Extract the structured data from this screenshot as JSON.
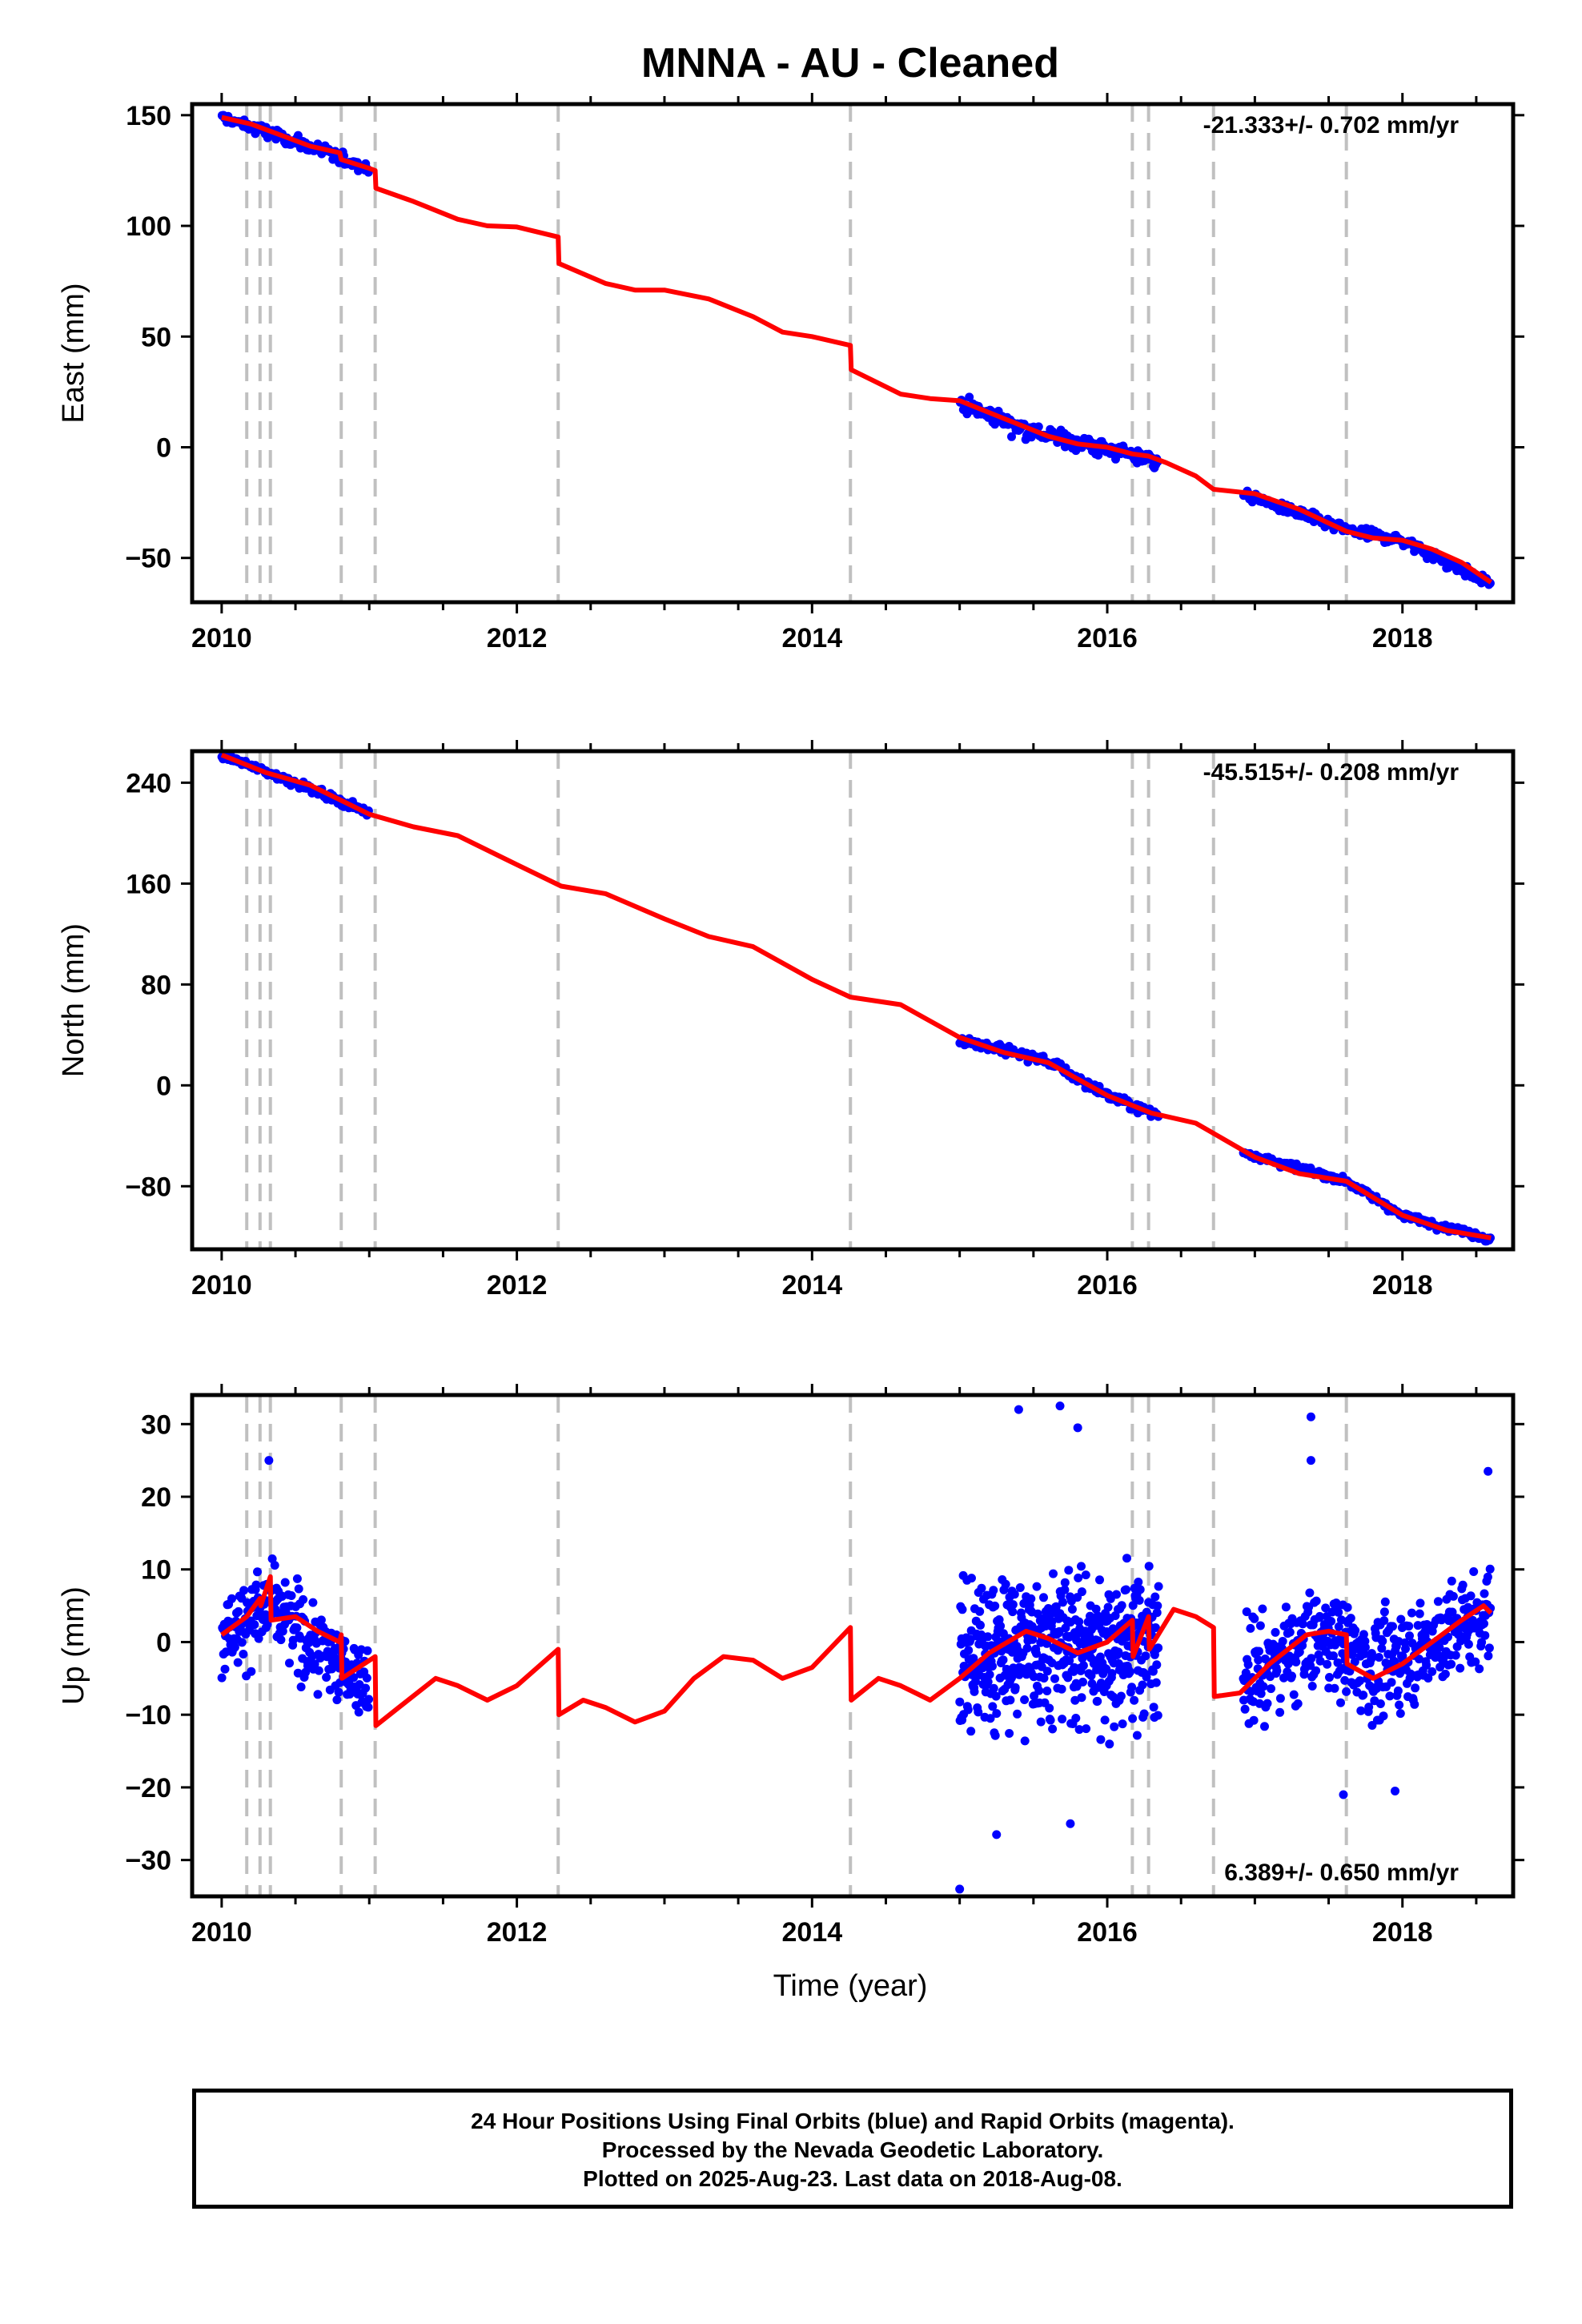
{
  "title": "MNNA  - AU - Cleaned",
  "xlabel": "Time (year)",
  "footer": {
    "line1": "24 Hour Positions Using Final Orbits (blue) and Rapid Orbits (magenta).",
    "line2": "Processed by the Nevada Geodetic Laboratory.",
    "line3": "Plotted on 2025-Aug-23. Last data on 2018-Aug-08."
  },
  "colors": {
    "data": "#0000ff",
    "model": "#ff0000",
    "breaks": "#c0c0c0",
    "frame": "#000000"
  },
  "chart_data": [
    {
      "type": "scatter",
      "component": "East",
      "ylabel": "East (mm)",
      "rate_label": "-21.333+/- 0.702 mm/yr",
      "xlim": [
        2009.8,
        2018.75
      ],
      "ylim": [
        -70,
        155
      ],
      "xticks": [
        2010,
        2012,
        2014,
        2016,
        2018
      ],
      "yticks": [
        150,
        100,
        50,
        0,
        -50
      ],
      "ytick_labels": [
        "150",
        "100",
        "50",
        "0",
        "−50"
      ],
      "grid": false,
      "breaks": [
        2010.17,
        2010.26,
        2010.33,
        2010.81,
        2011.04,
        2012.28,
        2014.26,
        2016.17,
        2016.28,
        2016.72,
        2017.62
      ],
      "model": [
        [
          2010.0,
          149
        ],
        [
          2010.2,
          146
        ],
        [
          2010.4,
          141
        ],
        [
          2010.6,
          136
        ],
        [
          2010.8,
          133
        ],
        [
          2010.81,
          130
        ],
        [
          2011.0,
          126
        ],
        [
          2011.04,
          125
        ],
        [
          2011.045,
          117
        ],
        [
          2011.3,
          111
        ],
        [
          2011.6,
          103
        ],
        [
          2011.8,
          100
        ],
        [
          2012.0,
          99.5
        ],
        [
          2012.28,
          95
        ],
        [
          2012.285,
          83
        ],
        [
          2012.6,
          74
        ],
        [
          2012.8,
          71
        ],
        [
          2013.0,
          71
        ],
        [
          2013.3,
          67
        ],
        [
          2013.6,
          59
        ],
        [
          2013.8,
          52
        ],
        [
          2014.0,
          50
        ],
        [
          2014.26,
          46
        ],
        [
          2014.265,
          35
        ],
        [
          2014.6,
          24
        ],
        [
          2014.8,
          22
        ],
        [
          2015.0,
          21
        ],
        [
          2015.3,
          13
        ],
        [
          2015.6,
          5
        ],
        [
          2015.8,
          1.5
        ],
        [
          2016.0,
          0
        ],
        [
          2016.17,
          -3
        ],
        [
          2016.28,
          -4
        ],
        [
          2016.4,
          -7
        ],
        [
          2016.6,
          -13
        ],
        [
          2016.72,
          -19
        ],
        [
          2017.0,
          -21
        ],
        [
          2017.3,
          -28
        ],
        [
          2017.62,
          -38
        ],
        [
          2017.8,
          -41
        ],
        [
          2018.0,
          -42
        ],
        [
          2018.2,
          -46
        ],
        [
          2018.4,
          -52
        ],
        [
          2018.6,
          -61
        ]
      ],
      "data_segments": [
        {
          "x_range": [
            2010.0,
            2011.0
          ],
          "trend": [
            [
              2010.0,
              149
            ],
            [
              2010.5,
              138
            ],
            [
              2011.0,
              126
            ]
          ],
          "noise": 2.5,
          "n": 120
        },
        {
          "x_range": [
            2015.0,
            2016.35
          ],
          "trend": [
            [
              2015.0,
              20
            ],
            [
              2015.5,
              7
            ],
            [
              2016.0,
              -1
            ],
            [
              2016.35,
              -6
            ]
          ],
          "noise": 3.5,
          "n": 170
        },
        {
          "x_range": [
            2016.92,
            2018.6
          ],
          "trend": [
            [
              2016.92,
              -21
            ],
            [
              2017.6,
              -37
            ],
            [
              2018.0,
              -42
            ],
            [
              2018.6,
              -62
            ]
          ],
          "noise": 2.2,
          "n": 200
        }
      ]
    },
    {
      "type": "scatter",
      "component": "North",
      "ylabel": "North (mm)",
      "rate_label": "-45.515+/- 0.208 mm/yr",
      "xlim": [
        2009.8,
        2018.75
      ],
      "ylim": [
        -130,
        265
      ],
      "xticks": [
        2010,
        2012,
        2014,
        2016,
        2018
      ],
      "yticks": [
        240,
        160,
        80,
        0,
        -80
      ],
      "ytick_labels": [
        "240",
        "160",
        "80",
        "0",
        "−80"
      ],
      "grid": false,
      "breaks": [
        2010.17,
        2010.26,
        2010.33,
        2010.81,
        2011.04,
        2012.28,
        2014.26,
        2016.17,
        2016.28,
        2016.72,
        2017.62
      ],
      "model": [
        [
          2010.0,
          262
        ],
        [
          2010.3,
          248
        ],
        [
          2010.6,
          238
        ],
        [
          2011.0,
          215
        ],
        [
          2011.3,
          205
        ],
        [
          2011.6,
          198
        ],
        [
          2012.0,
          175
        ],
        [
          2012.3,
          158
        ],
        [
          2012.6,
          152
        ],
        [
          2013.0,
          132
        ],
        [
          2013.3,
          118
        ],
        [
          2013.6,
          110
        ],
        [
          2014.0,
          84
        ],
        [
          2014.26,
          70
        ],
        [
          2014.6,
          64
        ],
        [
          2015.0,
          38
        ],
        [
          2015.3,
          26
        ],
        [
          2015.6,
          18
        ],
        [
          2016.0,
          -8
        ],
        [
          2016.3,
          -22
        ],
        [
          2016.6,
          -30
        ],
        [
          2017.0,
          -57
        ],
        [
          2017.3,
          -70
        ],
        [
          2017.62,
          -76
        ],
        [
          2018.0,
          -103
        ],
        [
          2018.3,
          -115
        ],
        [
          2018.6,
          -121
        ]
      ],
      "data_segments": [
        {
          "x_range": [
            2010.0,
            2011.0
          ],
          "trend": [
            [
              2010.0,
              262
            ],
            [
              2010.5,
              240
            ],
            [
              2011.0,
              216
            ]
          ],
          "noise": 2.5,
          "n": 120
        },
        {
          "x_range": [
            2015.0,
            2016.35
          ],
          "trend": [
            [
              2015.0,
              37
            ],
            [
              2015.6,
              19
            ],
            [
              2016.0,
              -8
            ],
            [
              2016.35,
              -24
            ]
          ],
          "noise": 3.5,
          "n": 170
        },
        {
          "x_range": [
            2016.92,
            2018.6
          ],
          "trend": [
            [
              2016.92,
              -53
            ],
            [
              2017.62,
              -76
            ],
            [
              2018.0,
              -103
            ],
            [
              2018.6,
              -122
            ]
          ],
          "noise": 2.5,
          "n": 200
        }
      ]
    },
    {
      "type": "scatter",
      "component": "Up",
      "ylabel": "Up (mm)",
      "rate_label": "6.389+/- 0.650 mm/yr",
      "xlim": [
        2009.8,
        2018.75
      ],
      "ylim": [
        -35,
        34
      ],
      "xticks": [
        2010,
        2012,
        2014,
        2016,
        2018
      ],
      "yticks": [
        30,
        20,
        10,
        0,
        -10,
        -20,
        -30
      ],
      "ytick_labels": [
        "30",
        "20",
        "10",
        "0",
        "−10",
        "−20",
        "−30"
      ],
      "grid": false,
      "breaks": [
        2010.17,
        2010.26,
        2010.33,
        2010.81,
        2011.04,
        2012.28,
        2014.26,
        2016.17,
        2016.28,
        2016.72,
        2017.62
      ],
      "model": [
        [
          2010.0,
          1
        ],
        [
          2010.17,
          3.5
        ],
        [
          2010.26,
          6
        ],
        [
          2010.265,
          5
        ],
        [
          2010.33,
          9
        ],
        [
          2010.335,
          3
        ],
        [
          2010.5,
          3.5
        ],
        [
          2010.65,
          1.5
        ],
        [
          2010.8,
          0
        ],
        [
          2010.81,
          1
        ],
        [
          2010.815,
          -5
        ],
        [
          2011.04,
          -2
        ],
        [
          2011.045,
          -11.5
        ],
        [
          2011.2,
          -9
        ],
        [
          2011.45,
          -5
        ],
        [
          2011.6,
          -6
        ],
        [
          2011.8,
          -8
        ],
        [
          2012.0,
          -6
        ],
        [
          2012.28,
          -1
        ],
        [
          2012.285,
          -10
        ],
        [
          2012.45,
          -8
        ],
        [
          2012.6,
          -9
        ],
        [
          2012.8,
          -11
        ],
        [
          2013.0,
          -9.5
        ],
        [
          2013.2,
          -5
        ],
        [
          2013.4,
          -2
        ],
        [
          2013.6,
          -2.5
        ],
        [
          2013.8,
          -5
        ],
        [
          2014.0,
          -3.5
        ],
        [
          2014.26,
          2
        ],
        [
          2014.265,
          -8
        ],
        [
          2014.45,
          -5
        ],
        [
          2014.6,
          -6
        ],
        [
          2014.8,
          -8
        ],
        [
          2015.0,
          -5
        ],
        [
          2015.2,
          -1.5
        ],
        [
          2015.45,
          1.5
        ],
        [
          2015.6,
          0.5
        ],
        [
          2015.8,
          -1.5
        ],
        [
          2016.0,
          0
        ],
        [
          2016.17,
          3
        ],
        [
          2016.175,
          -2
        ],
        [
          2016.28,
          3.5
        ],
        [
          2016.285,
          -1
        ],
        [
          2016.45,
          4.5
        ],
        [
          2016.6,
          3.5
        ],
        [
          2016.72,
          2
        ],
        [
          2016.725,
          -7.5
        ],
        [
          2016.9,
          -7
        ],
        [
          2017.1,
          -3
        ],
        [
          2017.35,
          1
        ],
        [
          2017.5,
          1.5
        ],
        [
          2017.62,
          1
        ],
        [
          2017.625,
          -3
        ],
        [
          2017.8,
          -5
        ],
        [
          2018.0,
          -3
        ],
        [
          2018.2,
          0
        ],
        [
          2018.4,
          3
        ],
        [
          2018.55,
          5
        ],
        [
          2018.6,
          4
        ]
      ],
      "data_segments": [
        {
          "x_range": [
            2010.0,
            2011.0
          ],
          "trend": [
            [
              2010.0,
              1
            ],
            [
              2010.33,
              5
            ],
            [
              2010.6,
              0
            ],
            [
              2011.0,
              -6
            ]
          ],
          "noise": 5,
          "n": 240
        },
        {
          "x_range": [
            2015.0,
            2016.35
          ],
          "trend": [
            [
              2015.0,
              -3
            ],
            [
              2015.5,
              0
            ],
            [
              2016.0,
              -1
            ],
            [
              2016.35,
              1
            ]
          ],
          "noise": 9,
          "n": 520
        },
        {
          "x_range": [
            2016.92,
            2018.6
          ],
          "trend": [
            [
              2016.92,
              -5
            ],
            [
              2017.5,
              1
            ],
            [
              2017.8,
              -4
            ],
            [
              2018.6,
              4
            ]
          ],
          "noise": 6,
          "n": 440
        }
      ],
      "outliers": [
        [
          2015.4,
          32
        ],
        [
          2015.68,
          32.5
        ],
        [
          2015.8,
          29.5
        ],
        [
          2017.38,
          31
        ],
        [
          2017.38,
          25
        ],
        [
          2010.32,
          25
        ],
        [
          2018.58,
          23.5
        ],
        [
          2015.0,
          -34
        ],
        [
          2015.25,
          -26.5
        ],
        [
          2015.75,
          -25
        ],
        [
          2017.6,
          -21
        ],
        [
          2017.95,
          -20.5
        ]
      ]
    }
  ]
}
